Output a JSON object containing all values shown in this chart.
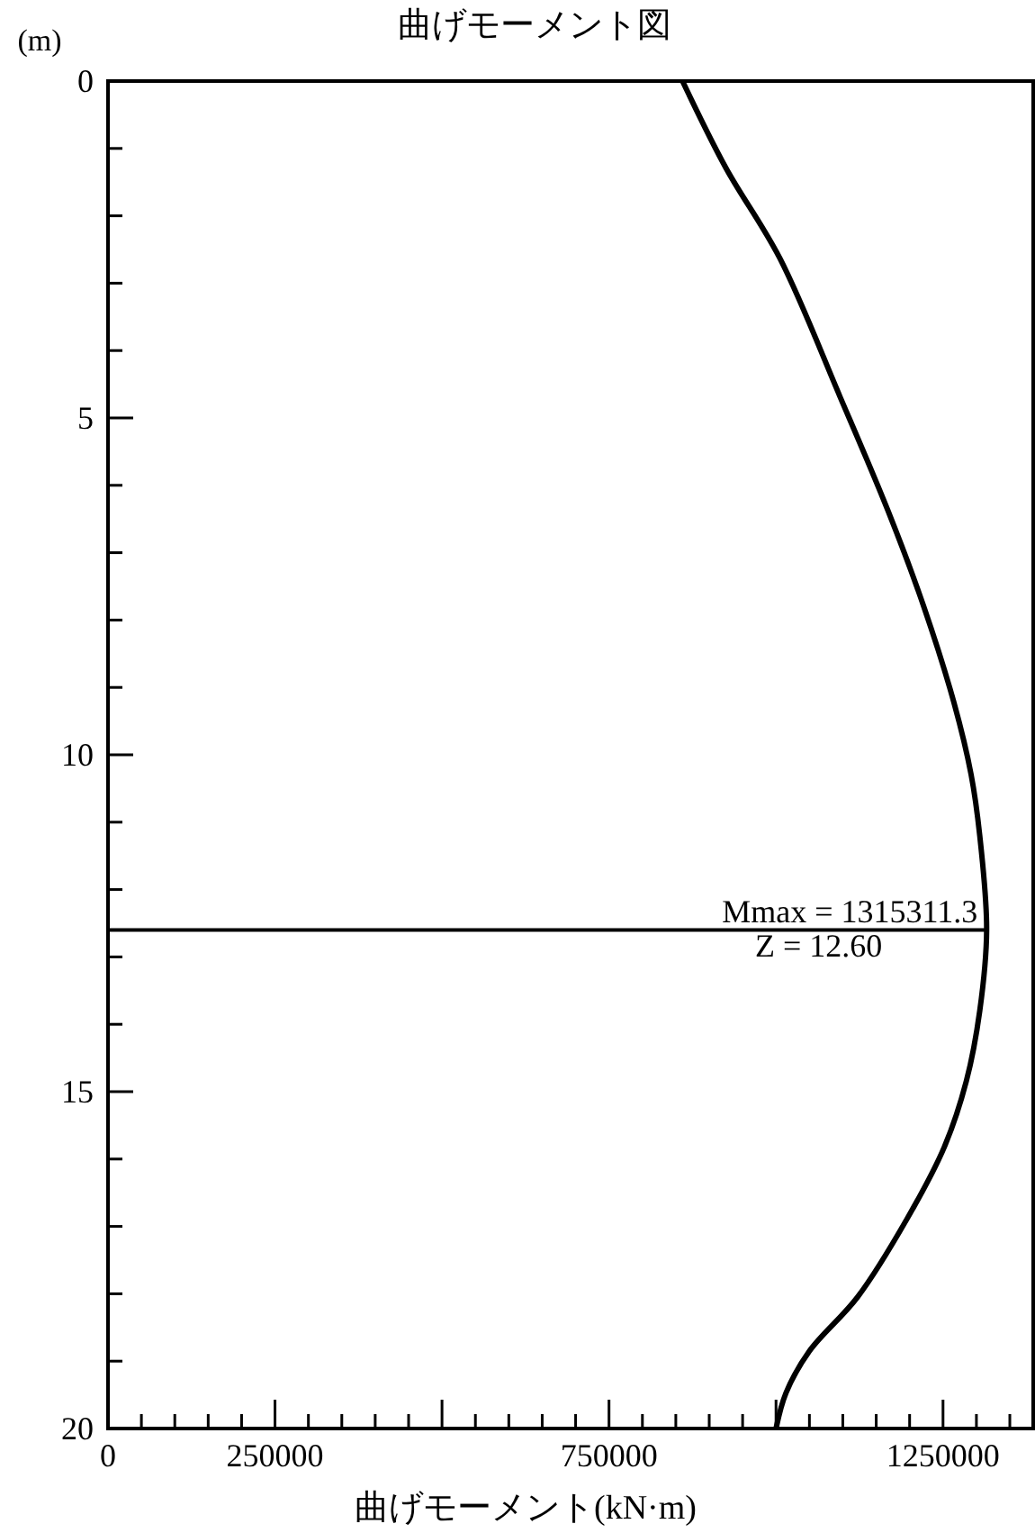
{
  "chart_data": {
    "type": "line",
    "title": "曲げモーメント図",
    "xlabel": "曲げモーメント(kN·m)",
    "ylabel": "(m)",
    "x": [
      860000,
      925000,
      1005700,
      1095600,
      1167300,
      1221200,
      1266200,
      1292000,
      1305000,
      1315311.3,
      1305000,
      1285000,
      1252000,
      1196000,
      1122000,
      1050000,
      1015000,
      1000000
    ],
    "series": [
      {
        "color": "#000000",
        "values": [
          0,
          1.29,
          2.63,
          4.68,
          6.37,
          7.8,
          9.22,
          10.29,
          11.2,
          12.6,
          13.8,
          14.84,
          15.82,
          16.89,
          18.05,
          18.85,
          19.47,
          20
        ]
      }
    ],
    "xlim": [
      0,
      1385000
    ],
    "ylim": [
      20,
      0
    ],
    "xticks": [
      0,
      {
        "value": 50000,
        "label": null
      },
      {
        "value": 100000,
        "label": null
      },
      {
        "value": 150000,
        "label": null
      },
      {
        "value": 200000,
        "label": null
      },
      250000,
      {
        "value": 300000,
        "label": null
      },
      {
        "value": 350000,
        "label": null
      },
      {
        "value": 400000,
        "label": null
      },
      {
        "value": 450000,
        "label": null
      },
      {
        "value": 500000,
        "label": null
      },
      {
        "value": 550000,
        "label": null
      },
      {
        "value": 600000,
        "label": null
      },
      {
        "value": 650000,
        "label": null
      },
      {
        "value": 700000,
        "label": null
      },
      750000,
      {
        "value": 800000,
        "label": null
      },
      {
        "value": 850000,
        "label": null
      },
      {
        "value": 900000,
        "label": null
      },
      {
        "value": 950000,
        "label": null
      },
      {
        "value": 1000000,
        "label": null
      },
      {
        "value": 1050000,
        "label": null
      },
      {
        "value": 1100000,
        "label": null
      },
      {
        "value": 1150000,
        "label": null
      },
      {
        "value": 1200000,
        "label": null
      },
      1250000,
      {
        "value": 1300000,
        "label": null
      },
      {
        "value": 1350000,
        "label": null
      }
    ],
    "yticks": [
      0,
      {
        "value": 1,
        "label": null
      },
      {
        "value": 2,
        "label": null
      },
      {
        "value": 3,
        "label": null
      },
      {
        "value": 4,
        "label": null
      },
      5,
      {
        "value": 6,
        "label": null
      },
      {
        "value": 7,
        "label": null
      },
      {
        "value": 8,
        "label": null
      },
      {
        "value": 9,
        "label": null
      },
      10,
      {
        "value": 11,
        "label": null
      },
      {
        "value": 12,
        "label": null
      },
      {
        "value": 13,
        "label": null
      },
      {
        "value": 14,
        "label": null
      },
      15,
      {
        "value": 16,
        "label": null
      },
      {
        "value": 17,
        "label": null
      },
      {
        "value": 18,
        "label": null
      },
      {
        "value": 19,
        "label": null
      },
      20
    ],
    "ref_lines": [
      {
        "axis": "y",
        "value": 12.6,
        "color": "#000000"
      }
    ],
    "annotations": [
      "Mmax = 1315311.3",
      "Z = 12.60"
    ],
    "marker": "none",
    "line_style": "solid"
  }
}
